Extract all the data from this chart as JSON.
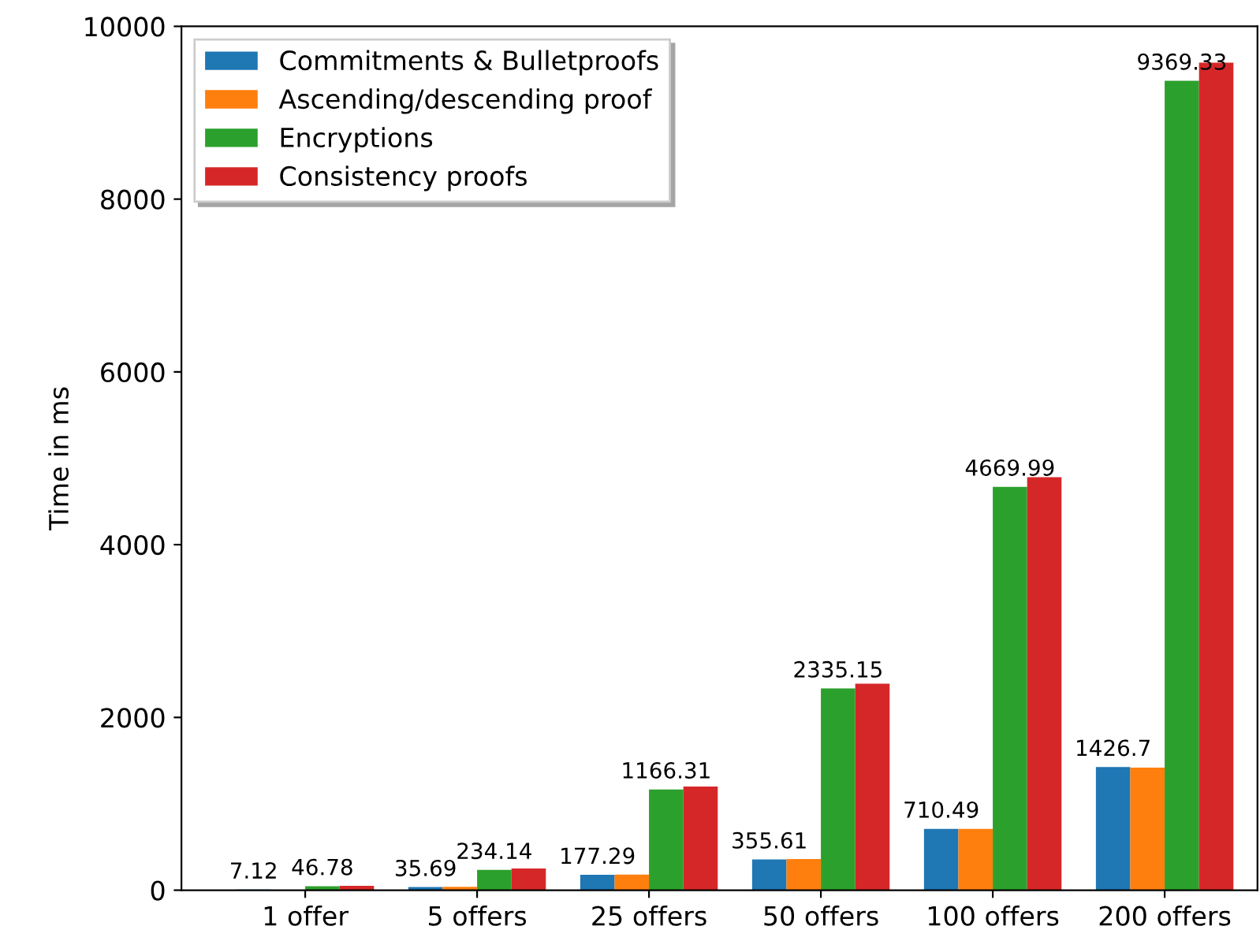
{
  "chart_data": {
    "type": "bar",
    "ylabel": "Time in ms",
    "categories": [
      "1 offer",
      "5 offers",
      "25 offers",
      "50 offers",
      "100 offers",
      "200 offers"
    ],
    "series": [
      {
        "name": "Commitments & Bulletproofs",
        "color": "#1f77b4",
        "values": [
          7.12,
          35.69,
          177.29,
          355.61,
          710.49,
          1426.7
        ],
        "value_labels": [
          "7.12",
          "35.69",
          "177.29",
          "355.61",
          "710.49",
          "1426.7"
        ]
      },
      {
        "name": "Ascending/descending proof",
        "color": "#ff7f0e",
        "values": [
          null,
          40,
          180,
          360,
          710,
          1420
        ]
      },
      {
        "name": "Encryptions",
        "color": "#2ca02c",
        "values": [
          46.78,
          234.14,
          1166.31,
          2335.15,
          4669.99,
          9369.33
        ],
        "value_labels": [
          "46.78",
          "234.14",
          "1166.31",
          "2335.15",
          "4669.99",
          "9369.33"
        ]
      },
      {
        "name": "Consistency proofs",
        "color": "#d62728",
        "values": [
          50,
          250,
          1200,
          2390,
          4780,
          9580
        ]
      }
    ],
    "ylim": [
      0,
      10000
    ],
    "yticks": [
      0,
      2000,
      4000,
      6000,
      8000,
      10000
    ],
    "grid": false,
    "legend": "top left"
  }
}
